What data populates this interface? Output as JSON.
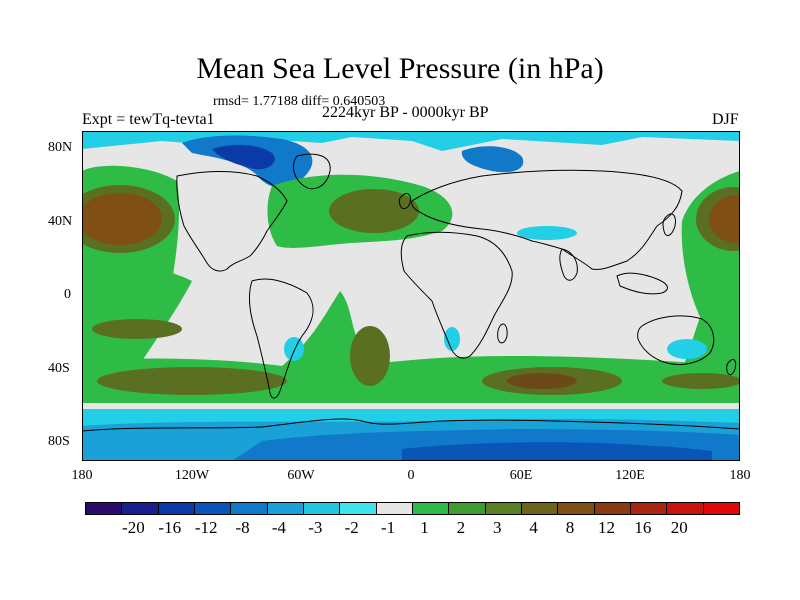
{
  "title": "Mean Sea Level Pressure (in hPa)",
  "stats": "rmsd= 1.77188 diff= 0.640503",
  "experiment": "Expt = tewTq-tevta1",
  "period": "2224kyr BP - 0000kyr BP",
  "season": "DJF",
  "lat_labels": [
    "80N",
    "40N",
    "0",
    "40S",
    "80S"
  ],
  "lon_labels": [
    "180",
    "120W",
    "60W",
    "0",
    "60E",
    "120E",
    "180"
  ],
  "colorbar": {
    "colors": [
      "#2b0a6e",
      "#1a1f8f",
      "#0b3aa8",
      "#0a56b8",
      "#1179c9",
      "#1aa2d8",
      "#23c7e2",
      "#3ee3ee",
      "#e6e6e6",
      "#2ebc47",
      "#3f9d2f",
      "#5a7f22",
      "#6c6418",
      "#7f4f14",
      "#8c3a12",
      "#a8260f",
      "#c8150c",
      "#e00707"
    ],
    "labels": [
      "-20",
      "-16",
      "-12",
      "-8",
      "-4",
      "-3",
      "-2",
      "-1",
      "1",
      "2",
      "3",
      "4",
      "8",
      "12",
      "16",
      "20"
    ]
  },
  "map_colors": {
    "ocean_grey": "#e6e6e6",
    "green": "#2ebc47",
    "dark_green": "#3f8f2a",
    "olive": "#5a6f22",
    "brown": "#6c4a18",
    "cyan": "#23cfe6",
    "light_blue": "#1aa2d8",
    "blue": "#1179c9",
    "dark_blue": "#0b3aa8",
    "coast": "#000000"
  }
}
